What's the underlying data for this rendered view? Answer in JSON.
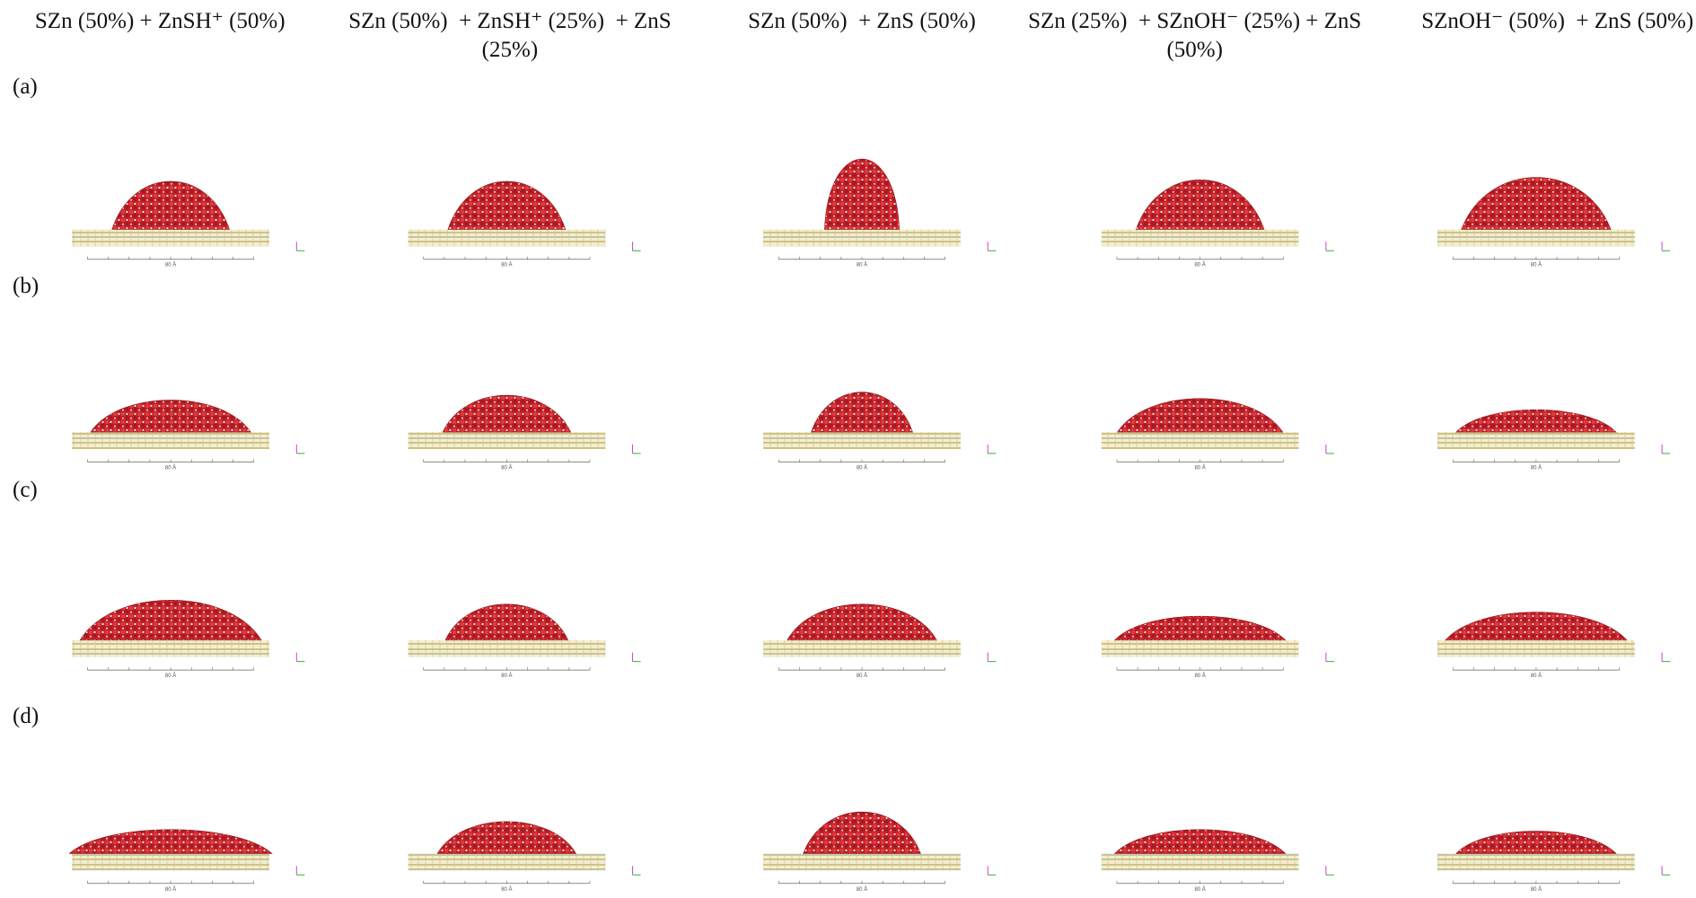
{
  "columns": [
    "SZn (50%) + ZnSH⁺ (50%)",
    "SZn (50%)  + ZnSH⁺ (25%)  + ZnS (25%)",
    "SZn (50%)  + ZnS (50%)",
    "SZn (25%)  + SZnOH⁻ (25%) + ZnS (50%)",
    "SZnOH⁻ (50%)  + ZnS (50%)"
  ],
  "rows": [
    "(a)",
    "(b)",
    "(c)",
    "(d)"
  ],
  "scale_label": "80 Å"
}
